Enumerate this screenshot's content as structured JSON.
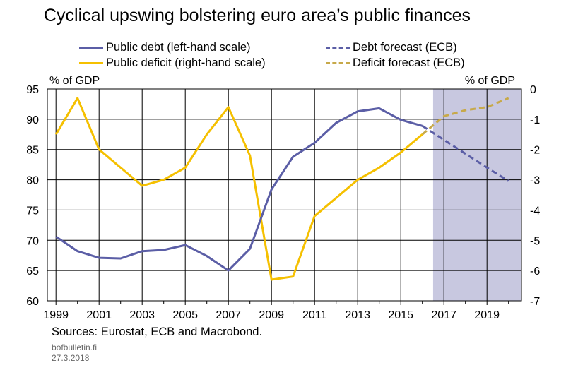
{
  "chart_data": {
    "type": "line",
    "title": "Cyclical upswing bolstering euro area’s public finances",
    "left_unit": "% of GDP",
    "right_unit": "% of GDP",
    "source": "Sources: Eurostat, ECB and Macrobond.",
    "site": "bofbulletin.fi",
    "date": "27.3.2018",
    "x_range": [
      1998.6,
      2020.6
    ],
    "x_ticks": [
      "1999",
      "2001",
      "2003",
      "2005",
      "2007",
      "2009",
      "2011",
      "2013",
      "2015",
      "2017",
      "2019"
    ],
    "left_axis": {
      "min": 60,
      "max": 95,
      "ticks": [
        "60",
        "65",
        "70",
        "75",
        "80",
        "85",
        "90",
        "95"
      ]
    },
    "right_axis": {
      "min": -7,
      "max": 0,
      "ticks": [
        "-7",
        "-6",
        "-5",
        "-4",
        "-3",
        "-2",
        "-1",
        "0"
      ]
    },
    "forecast_shade": {
      "from": 2016.5,
      "to": 2020.6,
      "color": "#c8c8e0"
    },
    "grid": true,
    "legend_placement": "top",
    "series": [
      {
        "name": "Public debt (left-hand scale)",
        "axis": "left",
        "style": "solid",
        "color": "#5b5ea6",
        "x": [
          1999,
          2000,
          2001,
          2002,
          2003,
          2004,
          2005,
          2006,
          2007,
          2008,
          2009,
          2010,
          2011,
          2012,
          2013,
          2014,
          2015,
          2016
        ],
        "values": [
          70.6,
          68.2,
          67.1,
          67.0,
          68.2,
          68.4,
          69.2,
          67.4,
          65.0,
          68.6,
          78.4,
          83.8,
          86.1,
          89.4,
          91.3,
          91.8,
          89.9,
          88.9
        ]
      },
      {
        "name": "Debt forecast (ECB)",
        "axis": "left",
        "style": "dashed",
        "color": "#5b5ea6",
        "x": [
          2016,
          2017,
          2018,
          2019,
          2020
        ],
        "values": [
          88.9,
          86.6,
          84.3,
          82.0,
          79.8
        ]
      },
      {
        "name": "Public deficit (right-hand scale)",
        "axis": "right",
        "style": "solid",
        "color": "#f5c000",
        "x": [
          1999,
          2000,
          2001,
          2002,
          2003,
          2004,
          2005,
          2006,
          2007,
          2008,
          2009,
          2010,
          2011,
          2012,
          2013,
          2014,
          2015,
          2016
        ],
        "values": [
          -1.5,
          -0.3,
          -2.0,
          -2.6,
          -3.2,
          -3.0,
          -2.6,
          -1.5,
          -0.6,
          -2.2,
          -6.3,
          -6.2,
          -4.2,
          -3.6,
          -3.0,
          -2.6,
          -2.1,
          -1.5
        ]
      },
      {
        "name": "Deficit forecast (ECB)",
        "axis": "right",
        "style": "dashed",
        "color": "#c7a94a",
        "x": [
          2016,
          2017,
          2018,
          2019,
          2020
        ],
        "values": [
          -1.5,
          -0.9,
          -0.7,
          -0.6,
          -0.3
        ]
      }
    ]
  }
}
